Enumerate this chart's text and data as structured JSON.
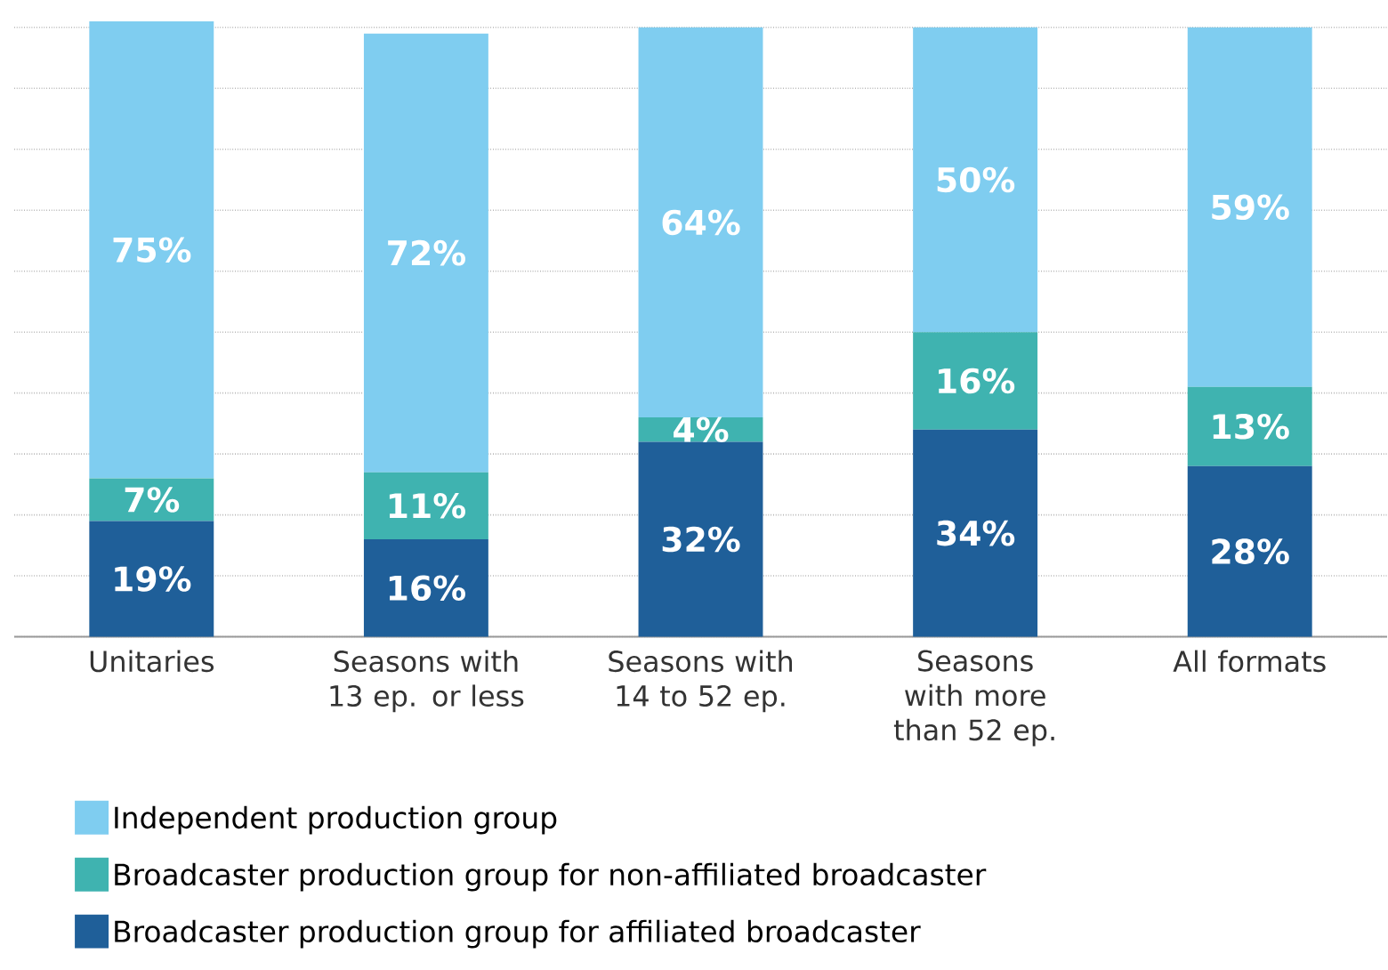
{
  "chart_data": {
    "type": "bar",
    "stacked": true,
    "categories": [
      "Unitaries",
      "Seasons with 13 ep. or less",
      "Seasons with 14 to 52 ep.",
      "Seasons with more than 52 ep.",
      "All formats"
    ],
    "series": [
      {
        "name": "Broadcaster production group for affiliated broadcaster",
        "color": "#1f5f99",
        "values": [
          19,
          16,
          32,
          34,
          28
        ],
        "value_labels": [
          "19%",
          "16%",
          "32%",
          "34%",
          "28%"
        ]
      },
      {
        "name": "Broadcaster production group for non-affiliated broadcaster",
        "color": "#3fb3b0",
        "values": [
          7,
          11,
          4,
          16,
          13
        ],
        "value_labels": [
          "7%",
          "11%",
          "4%",
          "16%",
          "13%"
        ]
      },
      {
        "name": "Independent production group",
        "color": "#7fcdf0",
        "values": [
          75,
          72,
          64,
          50,
          59
        ],
        "value_labels": [
          "75%",
          "72%",
          "64%",
          "50%",
          "59%"
        ]
      }
    ],
    "ylim": [
      0,
      101
    ],
    "yticks": [
      {
        "value": 0,
        "label": null
      },
      {
        "value": 10,
        "label": null
      },
      {
        "value": 20,
        "label": null
      },
      {
        "value": 30,
        "label": null
      },
      {
        "value": 40,
        "label": null
      },
      {
        "value": 50,
        "label": null
      },
      {
        "value": 60,
        "label": null
      },
      {
        "value": 70,
        "label": null
      },
      {
        "value": 80,
        "label": null
      },
      {
        "value": 90,
        "label": null
      },
      {
        "value": 100,
        "label": null
      }
    ],
    "tick_labels": "x",
    "grid": "y",
    "legend": "bottom"
  }
}
